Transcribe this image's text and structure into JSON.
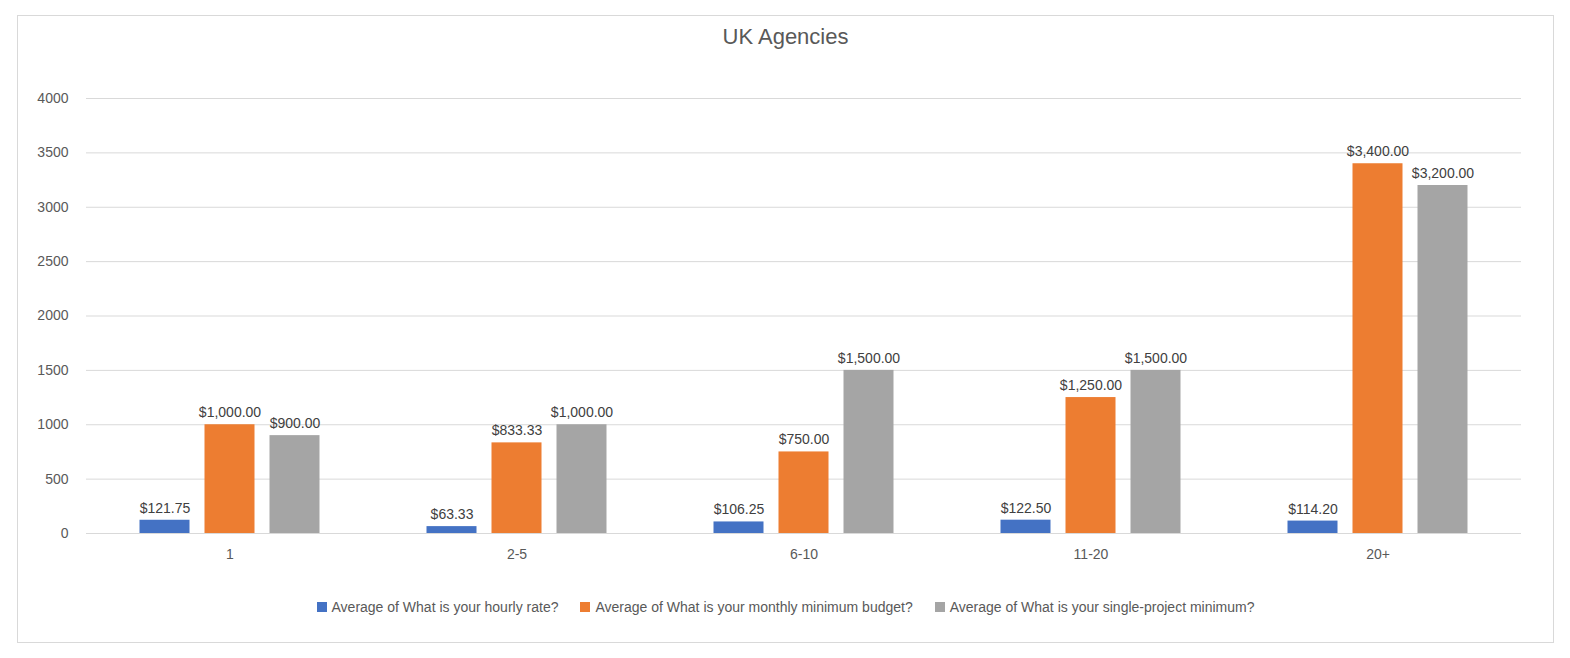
{
  "chart_data": {
    "type": "bar",
    "title": "UK Agencies",
    "categories": [
      "1",
      "2-5",
      "6-10",
      "11-20",
      "20+"
    ],
    "series": [
      {
        "name": "Average of What is your hourly rate?",
        "color": "#4472c4",
        "values": [
          121.75,
          63.33,
          106.25,
          122.5,
          114.2
        ],
        "value_labels": [
          "$121.75",
          "$63.33",
          "$106.25",
          "$122.50",
          "$114.20"
        ]
      },
      {
        "name": "Average of What is your monthly minimum budget?",
        "color": "#ed7d31",
        "values": [
          1000,
          833.33,
          750,
          1250,
          3400
        ],
        "value_labels": [
          "$1,000.00",
          "$833.33",
          "$750.00",
          "$1,250.00",
          "$3,400.00"
        ]
      },
      {
        "name": "Average of What is your single-project minimum?",
        "color": "#a5a5a5",
        "values": [
          900,
          1000,
          1500,
          1500,
          3200
        ],
        "value_labels": [
          "$900.00",
          "$1,000.00",
          "$1,500.00",
          "$1,500.00",
          "$3,200.00"
        ]
      }
    ],
    "ylim": [
      0,
      4000
    ],
    "yticks": [
      0,
      500,
      1000,
      1500,
      2000,
      2500,
      3000,
      3500,
      4000
    ],
    "grid": true,
    "data_labels": true,
    "legend": "bottom"
  }
}
